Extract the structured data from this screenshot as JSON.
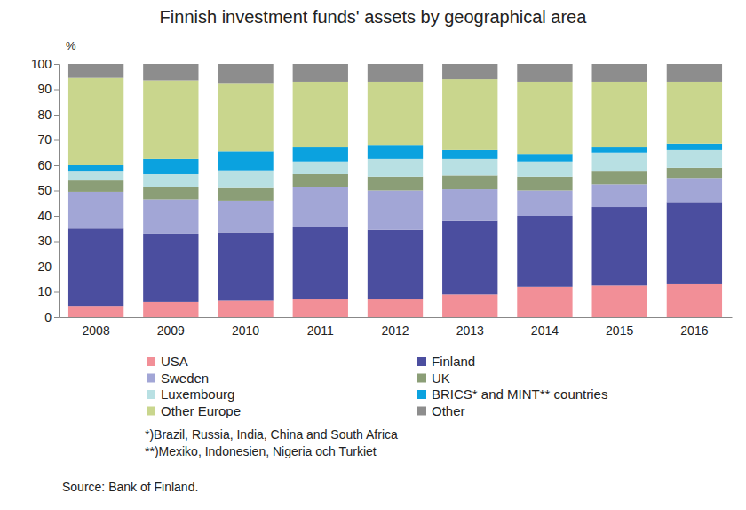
{
  "chart_data": {
    "type": "bar",
    "stacked": true,
    "title": "Finnish investment funds' assets by geographical area",
    "ylabel": "%",
    "categories": [
      "2008",
      "2009",
      "2010",
      "2011",
      "2012",
      "2013",
      "2014",
      "2015",
      "2016"
    ],
    "series": [
      {
        "name": "USA",
        "color": "#f28f97",
        "values": [
          4.5,
          6,
          6.5,
          7,
          7,
          9,
          12,
          12.5,
          13
        ]
      },
      {
        "name": "Finland",
        "color": "#4b4e9f",
        "values": [
          30.5,
          27,
          27,
          28.5,
          27.5,
          29,
          28,
          31,
          32.5
        ]
      },
      {
        "name": "Sweden",
        "color": "#a2a6d6",
        "values": [
          14.5,
          13.5,
          12.5,
          16,
          15.5,
          12.5,
          10,
          9,
          9.5
        ]
      },
      {
        "name": "UK",
        "color": "#8b9e77",
        "values": [
          4.5,
          5,
          5,
          5,
          5.5,
          5.5,
          5.5,
          5,
          4
        ]
      },
      {
        "name": "Luxembourg",
        "color": "#b8e0e3",
        "values": [
          3.5,
          5,
          7,
          5,
          7,
          6.5,
          6,
          7.5,
          7
        ]
      },
      {
        "name": "BRICS* and MINT** countries",
        "color": "#0ba2df",
        "values": [
          2.5,
          6,
          7.5,
          5.5,
          5.5,
          3.5,
          3,
          2,
          2.5
        ]
      },
      {
        "name": "Other Europe",
        "color": "#c9d68d",
        "values": [
          34.5,
          31,
          27,
          26,
          25,
          28,
          28.5,
          26,
          24.5
        ]
      },
      {
        "name": "Other",
        "color": "#8d8d8d",
        "values": [
          5.5,
          6.5,
          7.5,
          7,
          7,
          6,
          7,
          7,
          7
        ]
      }
    ],
    "ylim": [
      0,
      100
    ],
    "yticks": [
      0,
      10,
      20,
      30,
      40,
      50,
      60,
      70,
      80,
      90,
      100
    ],
    "grid": false,
    "legend": "bottom",
    "annotations": [
      "*)Brazil, Russia, India, China and South Africa",
      "**)Mexiko, Indonesien, Nigeria och Turkiet",
      "Source: Bank of Finland."
    ]
  }
}
